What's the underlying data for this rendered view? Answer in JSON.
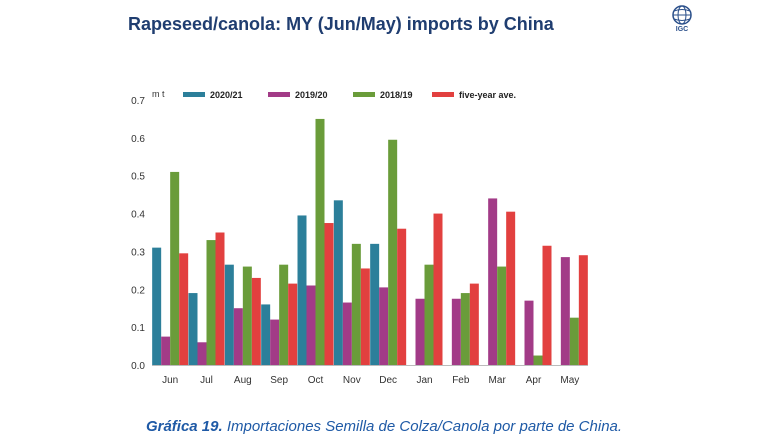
{
  "header": {
    "title": "Rapeseed/canola: MY (Jun/May) imports by China",
    "logo_text": "IGC"
  },
  "caption": {
    "label": "Gráfica 19.",
    "text": "Importaciones Semilla de Colza/Canola por parte de China."
  },
  "chart_data": {
    "type": "bar",
    "title": "Rapeseed/canola: MY (Jun/May) imports by China",
    "ylabel": "m t",
    "xlabel": "",
    "ylim": [
      0,
      0.7
    ],
    "yticks": [
      "0.0",
      "0.1",
      "0.2",
      "0.3",
      "0.4",
      "0.5",
      "0.6",
      "0.7"
    ],
    "grid": false,
    "legend_position": "top",
    "categories": [
      "Jun",
      "Jul",
      "Aug",
      "Sep",
      "Oct",
      "Nov",
      "Dec",
      "Jan",
      "Feb",
      "Mar",
      "Apr",
      "May"
    ],
    "series": [
      {
        "name": "2020/21",
        "color": "#2c7f9a",
        "values": [
          0.31,
          0.19,
          0.265,
          0.16,
          0.395,
          0.435,
          0.32,
          null,
          null,
          null,
          null,
          null
        ]
      },
      {
        "name": "2019/20",
        "color": "#a23b87",
        "values": [
          0.075,
          0.06,
          0.15,
          0.12,
          0.21,
          0.165,
          0.205,
          0.175,
          0.175,
          0.44,
          0.17,
          0.285
        ]
      },
      {
        "name": "2018/19",
        "color": "#6a9c3a",
        "values": [
          0.51,
          0.33,
          0.26,
          0.265,
          0.65,
          0.32,
          0.595,
          0.265,
          0.19,
          0.26,
          0.025,
          0.125
        ]
      },
      {
        "name": "five-year ave.",
        "color": "#e2403f",
        "values": [
          0.295,
          0.35,
          0.23,
          0.215,
          0.375,
          0.255,
          0.36,
          0.4,
          0.215,
          0.405,
          0.315,
          0.29
        ]
      }
    ]
  }
}
